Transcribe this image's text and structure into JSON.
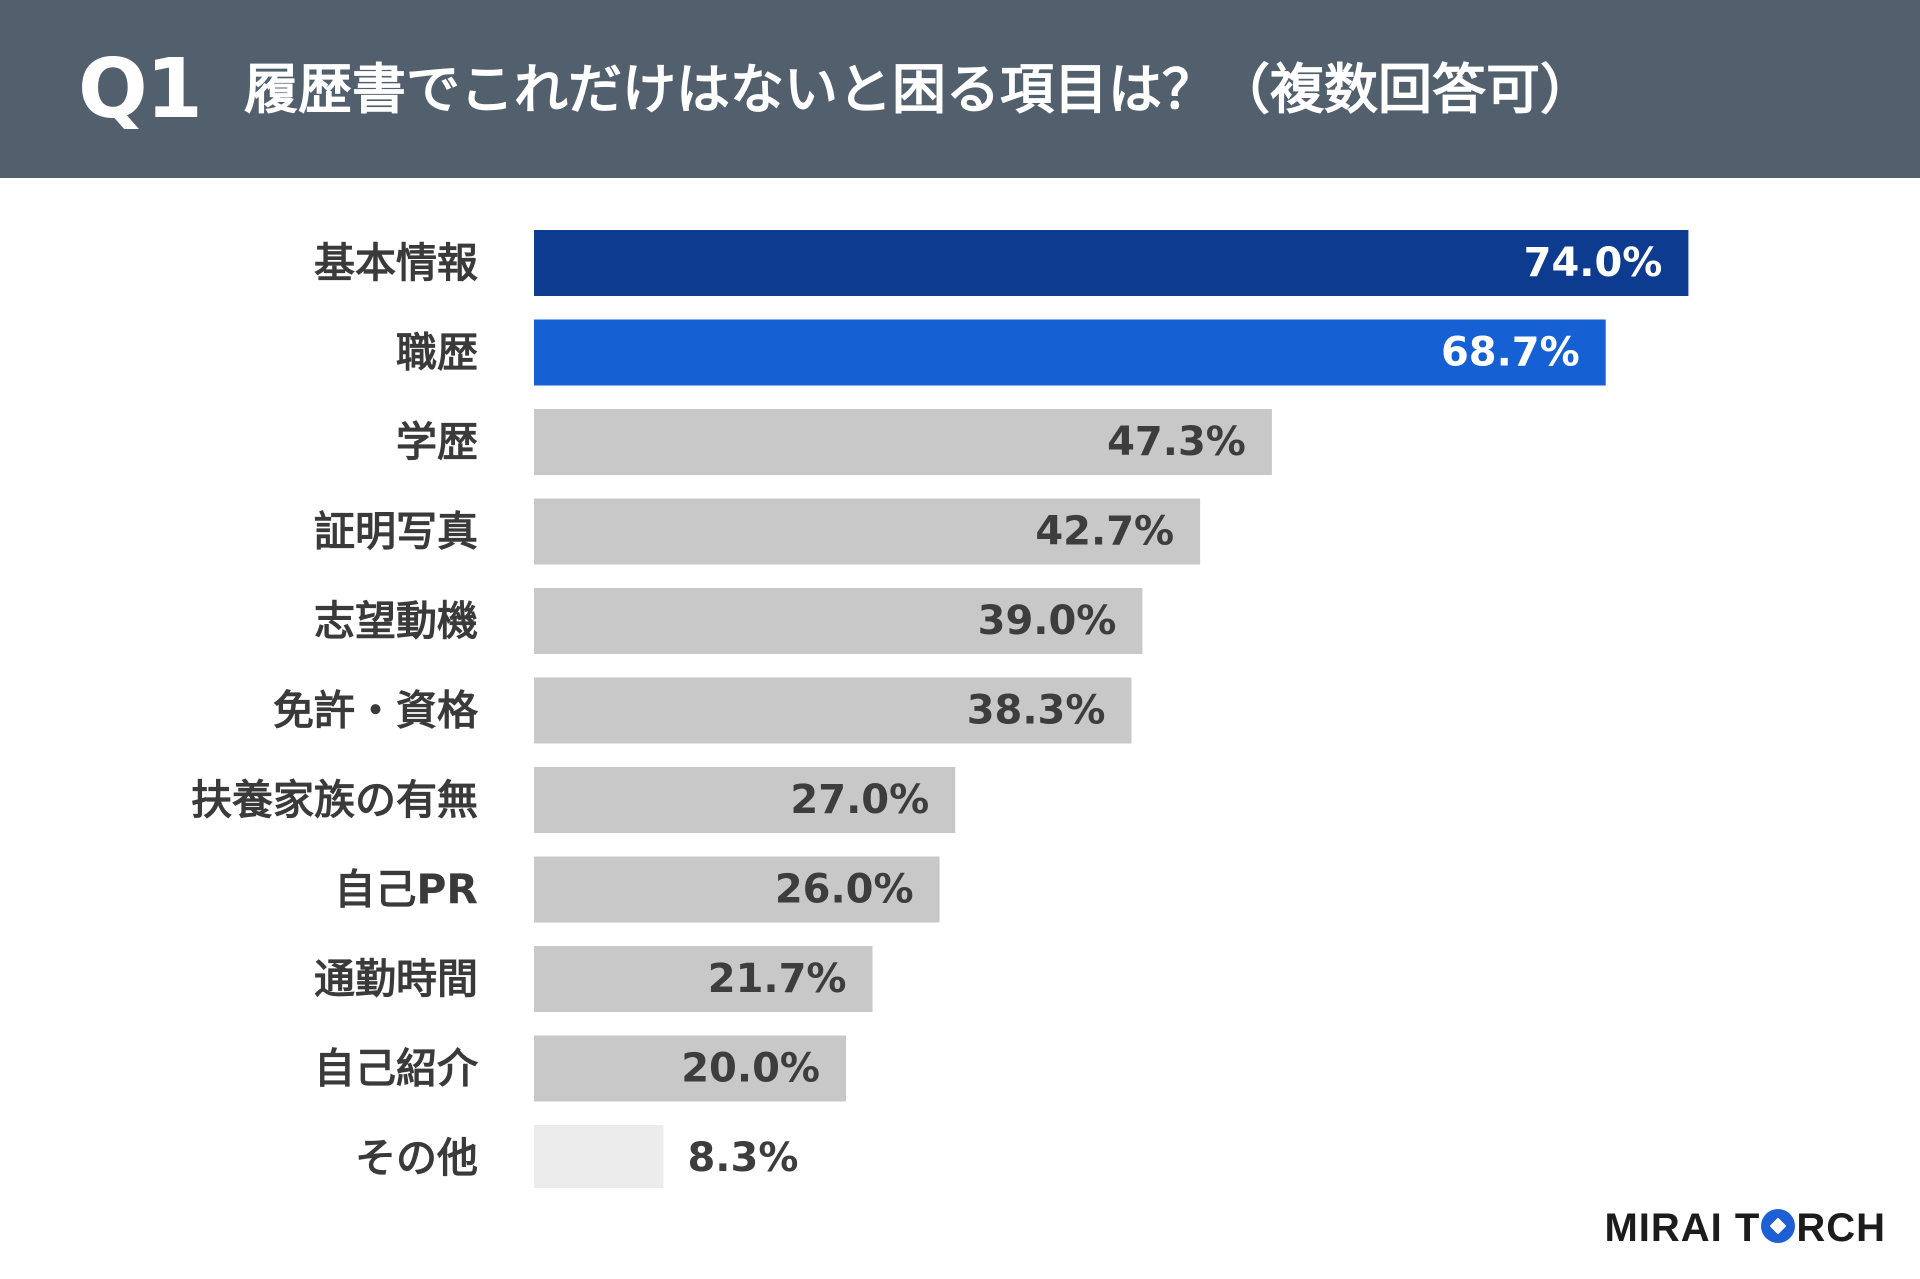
{
  "header": {
    "question_number": "Q1",
    "question_text": "履歴書でこれだけはないと困る項目は？（複数回答可）"
  },
  "brand": {
    "logo_part1": "MIRAI T",
    "logo_part2": "RCH"
  },
  "colors": {
    "header_bg": "#525f6d",
    "bar_top1": "#0d3b8f",
    "bar_top2": "#1560d3",
    "bar_default": "#c8c8c8",
    "bar_last": "#ececec"
  },
  "chart_data": {
    "type": "bar",
    "orientation": "horizontal",
    "title": "履歴書でこれだけはないと困る項目は？（複数回答可）",
    "categories": [
      "基本情報",
      "職歴",
      "学歴",
      "証明写真",
      "志望動機",
      "免許・資格",
      "扶養家族の有無",
      "自己PR",
      "通勤時間",
      "自己紹介",
      "その他"
    ],
    "values": [
      74.0,
      68.7,
      47.3,
      42.7,
      39.0,
      38.3,
      27.0,
      26.0,
      21.7,
      20.0,
      8.3
    ],
    "value_labels": [
      "74.0%",
      "68.7%",
      "47.3%",
      "42.7%",
      "39.0%",
      "38.3%",
      "27.0%",
      "26.0%",
      "21.7%",
      "20.0%",
      "8.3%"
    ],
    "xlim": [
      0,
      100
    ],
    "unit": "%",
    "grid": false,
    "legend": "none"
  }
}
